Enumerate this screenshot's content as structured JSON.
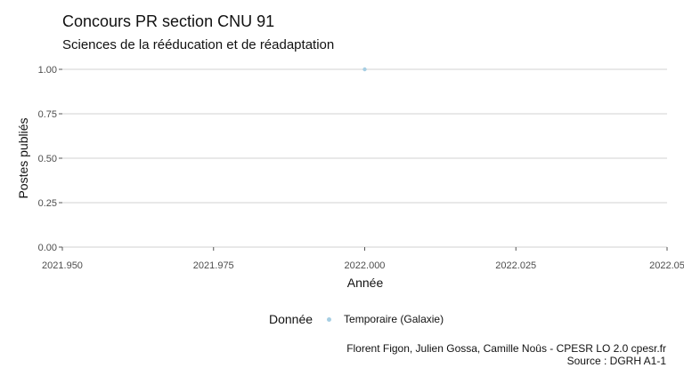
{
  "title": "Concours PR section CNU 91",
  "subtitle": "Sciences de la rééducation et de réadaptation",
  "legend": {
    "title": "Donnée",
    "items": [
      {
        "label": "Temporaire (Galaxie)",
        "color": "#a6cee3"
      }
    ]
  },
  "caption": {
    "line1": "Florent Figon, Julien Gossa, Camille Noûs - CPESR LO 2.0 cpesr.fr",
    "line2": "Source : DGRH A1-1"
  },
  "chart_data": {
    "type": "scatter",
    "title": "Concours PR section CNU 91",
    "subtitle": "Sciences de la rééducation et de réadaptation",
    "xlabel": "Année",
    "ylabel": "Postes publiés",
    "xlim": [
      2021.95,
      2022.05
    ],
    "ylim": [
      0,
      1
    ],
    "x_ticks": [
      "2021.950",
      "2021.975",
      "2022.000",
      "2022.025",
      "2022.05"
    ],
    "y_ticks": [
      "0.00",
      "0.25",
      "0.50",
      "0.75",
      "1.00"
    ],
    "x_tick_values": [
      2021.95,
      2021.975,
      2022.0,
      2022.025,
      2022.05
    ],
    "y_tick_values": [
      0,
      0.25,
      0.5,
      0.75,
      1.0
    ],
    "grid": "horizontal",
    "legend_position": "bottom",
    "series": [
      {
        "name": "Temporaire (Galaxie)",
        "color": "#a6cee3",
        "points": [
          {
            "x": 2022.0,
            "y": 1
          }
        ]
      }
    ]
  }
}
